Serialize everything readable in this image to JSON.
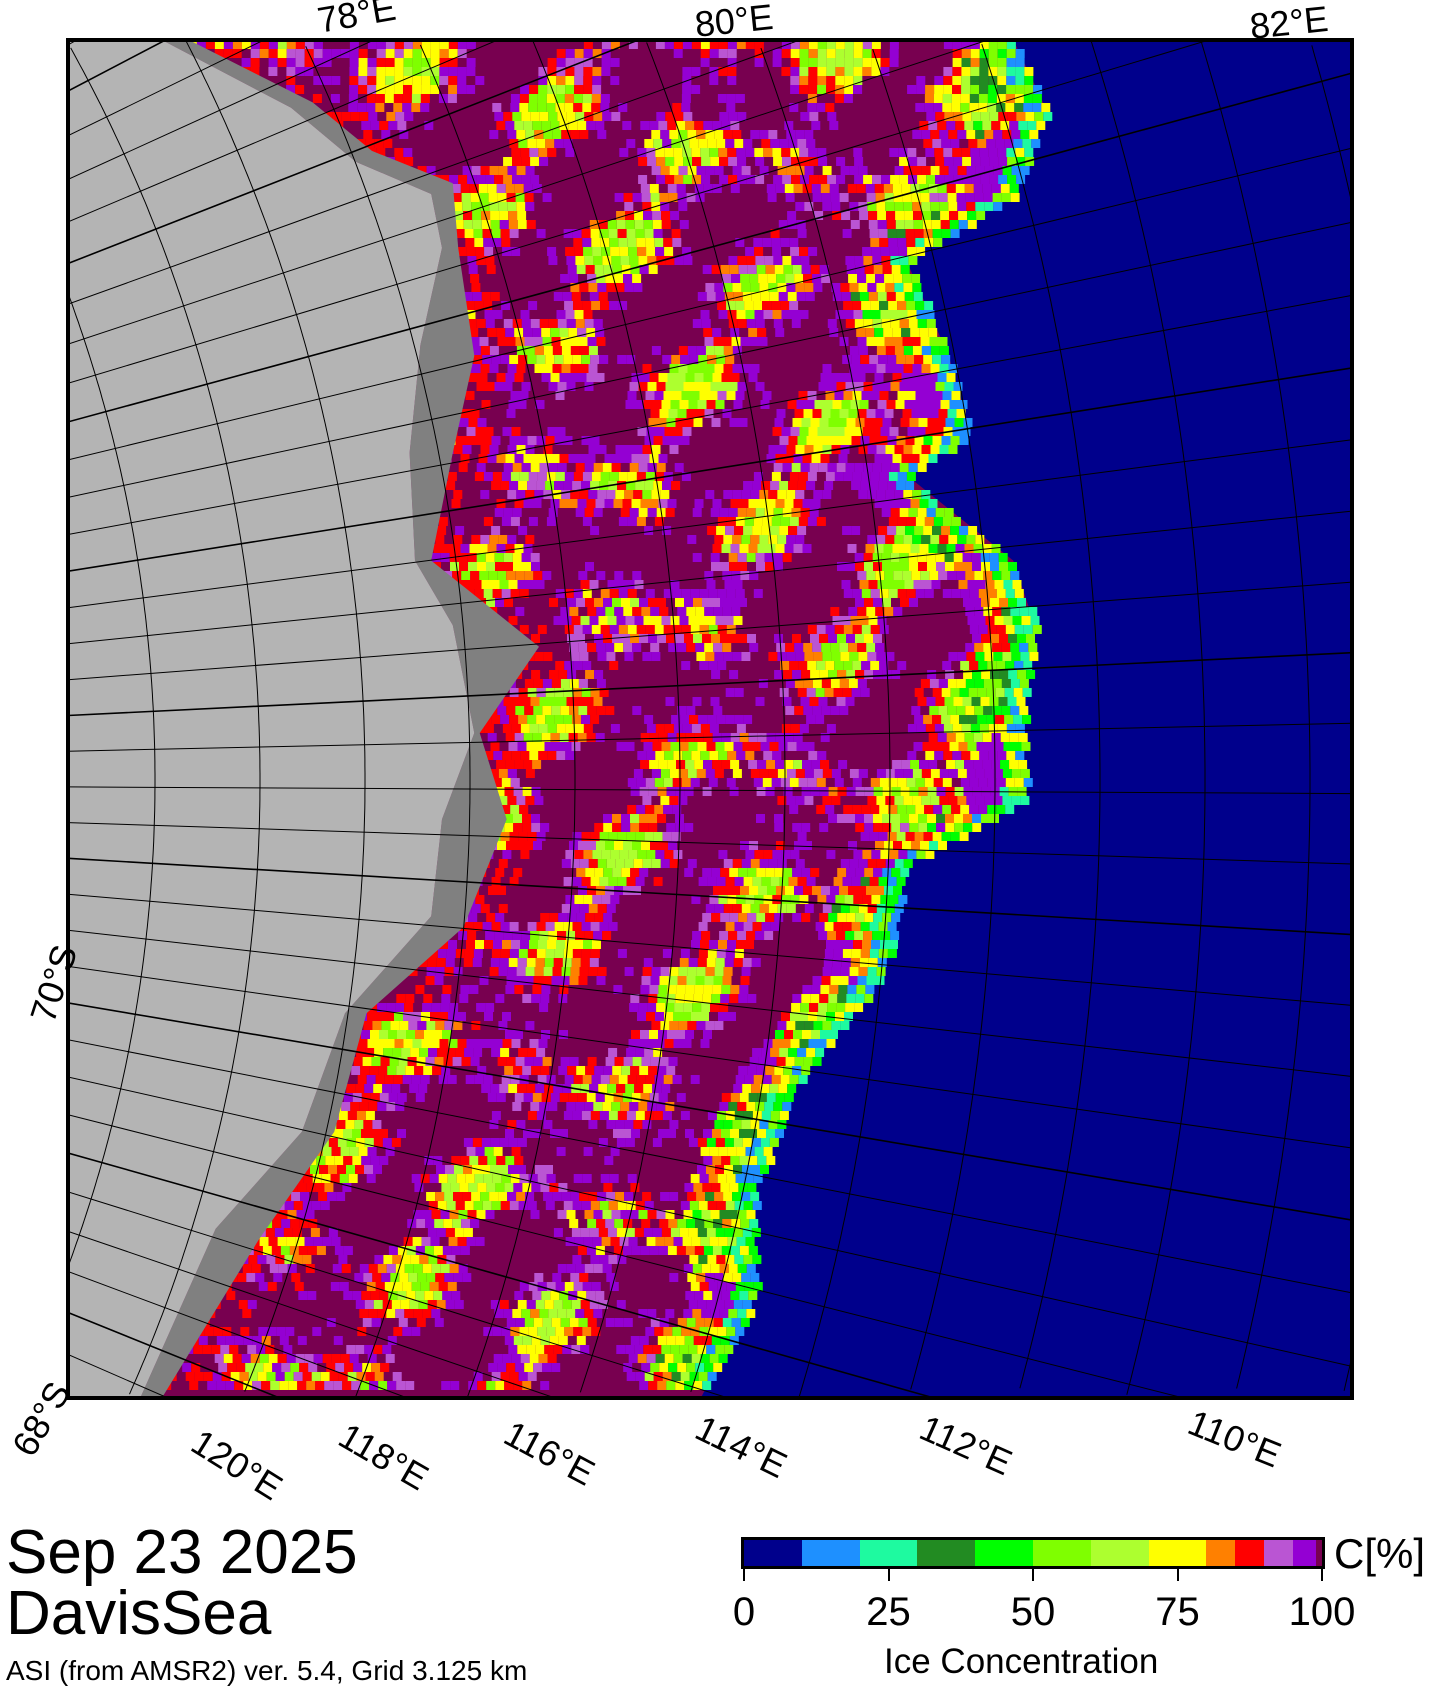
{
  "map": {
    "top_labels": [
      "78°E",
      "80°E",
      "82°E"
    ],
    "bottom_labels": [
      "120°E",
      "118°E",
      "116°E",
      "114°E",
      "112°E",
      "110°E"
    ],
    "left_labels": [
      "70°S",
      "68°S"
    ],
    "colors": {
      "land": "#b4b4b4",
      "ice_shelf": "#808080",
      "open_water": "#00008c",
      "full_ice": "#780050"
    }
  },
  "info": {
    "date": "Sep 23 2025",
    "region": "DavisSea",
    "source": "ASI (from AMSR2) ver. 5.4,  Grid 3.125 km"
  },
  "colorbar": {
    "title": "Ice Concentration",
    "unit": "C[%]",
    "ticks": [
      "0",
      "25",
      "50",
      "75",
      "100"
    ],
    "range": [
      0,
      100
    ],
    "bins": [
      {
        "from": 0,
        "to": 10,
        "color": "#00008c"
      },
      {
        "from": 10,
        "to": 20,
        "color": "#1e90ff"
      },
      {
        "from": 20,
        "to": 30,
        "color": "#1efaa0"
      },
      {
        "from": 30,
        "to": 40,
        "color": "#228b22"
      },
      {
        "from": 40,
        "to": 50,
        "color": "#00ff00"
      },
      {
        "from": 50,
        "to": 60,
        "color": "#7fff00"
      },
      {
        "from": 60,
        "to": 70,
        "color": "#adff2f"
      },
      {
        "from": 70,
        "to": 80,
        "color": "#ffff00"
      },
      {
        "from": 80,
        "to": 85,
        "color": "#ff8000"
      },
      {
        "from": 85,
        "to": 90,
        "color": "#ff0000"
      },
      {
        "from": 90,
        "to": 95,
        "color": "#ba55d3"
      },
      {
        "from": 95,
        "to": 99,
        "color": "#9400d3"
      },
      {
        "from": 99,
        "to": 100,
        "color": "#780050"
      }
    ]
  }
}
